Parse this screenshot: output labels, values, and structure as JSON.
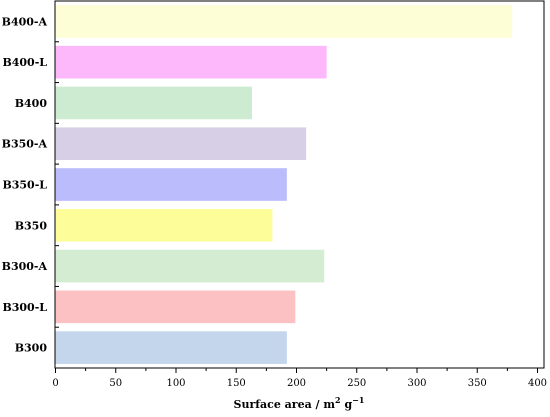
{
  "chart_data": {
    "type": "bar",
    "orientation": "horizontal",
    "categories": [
      "B400-A",
      "B400-L",
      "B400",
      "B350-A",
      "B350-L",
      "B350",
      "B300-A",
      "B300-L",
      "B300"
    ],
    "values": [
      379,
      225,
      163,
      208,
      192,
      180,
      223,
      199,
      192
    ],
    "colors": [
      "#fdfdd6",
      "#fcb8fb",
      "#ccebd1",
      "#d7cfe5",
      "#bbbcfb",
      "#fdfe9a",
      "#d4ecd2",
      "#fcc2c3",
      "#c4d6ec"
    ],
    "xlabel": {
      "prefix": "Surface area / m",
      "sup1": "2",
      "mid": " g",
      "sup2": "−1"
    },
    "xlim": [
      0,
      400
    ],
    "xticks": [
      0,
      50,
      100,
      150,
      200,
      250,
      300,
      350,
      400
    ],
    "xtick_labels": [
      "0",
      "50",
      "100",
      "150",
      "200",
      "250",
      "300",
      "350",
      "400"
    ],
    "grid": false,
    "legend": "none"
  }
}
